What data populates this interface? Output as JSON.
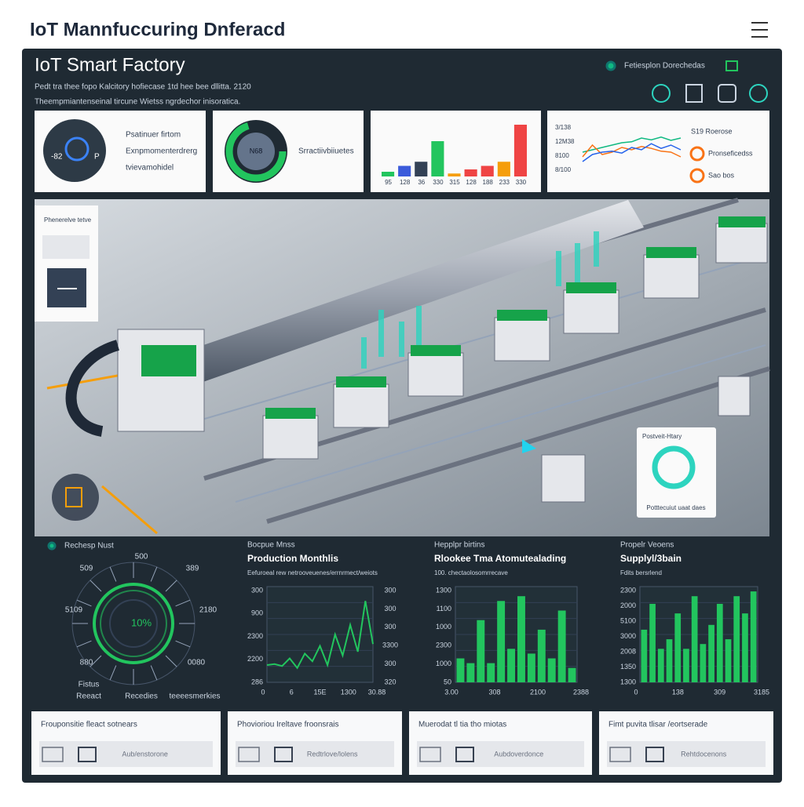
{
  "header": {
    "title": "IoT Mannfuccuring Dnferacd"
  },
  "panel": {
    "title": "IoT Smart Factory",
    "status": "Fetiesplon Dorechedas",
    "subtitle_lines": [
      "Pedt tra thee fopo Kalcitory hofiecase 1td hee bee dllitta. 2120",
      "Theempmiantenseinal tircune Wietss ngrdechor inisoratica."
    ]
  },
  "top_cards": [
    {
      "lines": [
        "Psatinuer firtom",
        "Exnpmomenterdrerg",
        "tvievamohidel"
      ],
      "gauge_labels": [
        "-82",
        "P"
      ]
    },
    {
      "center": "N68",
      "label": "Srractiivbiiuetes"
    },
    {
      "type": "bar",
      "ylim": [
        0,
        100
      ],
      "categories": [
        "95",
        "128",
        "36",
        "330",
        "315",
        "128",
        "188",
        "233",
        "330"
      ],
      "values": [
        8,
        18,
        25,
        60,
        5,
        12,
        18,
        25,
        88
      ],
      "colors": [
        "#22c55e",
        "#3b5bdb",
        "#334155",
        "#22c55e",
        "#f59e0b",
        "#ef4444",
        "#ef4444",
        "#f59e0b",
        "#ef4444"
      ]
    },
    {
      "type": "line",
      "ylim": [
        0,
        100
      ],
      "axis_labels": [
        "3/138",
        "12M38",
        "8100",
        "8/100"
      ],
      "series": [
        {
          "name": "S19 Roerose",
          "color": "#10b981",
          "values": [
            40,
            45,
            50,
            55,
            60,
            62,
            70,
            66,
            72,
            65,
            70
          ]
        },
        {
          "name": "Pronseficedss",
          "color": "#f97316",
          "values": [
            30,
            55,
            35,
            40,
            50,
            45,
            52,
            48,
            42,
            40,
            30
          ]
        },
        {
          "name": "Sao bos",
          "color": "#2563eb",
          "values": [
            20,
            35,
            40,
            42,
            38,
            50,
            45,
            58,
            48,
            55,
            45
          ]
        }
      ]
    }
  ],
  "image": {
    "left_card": "Phenerelve tetve",
    "right_card_title": "Postveit-Htary",
    "right_card_caption": "Potttecuiut uaat daes"
  },
  "bottom": [
    {
      "label": "Rechesp Nust",
      "center": "10%",
      "ring_labels": [
        "500",
        "509",
        "389",
        "5109",
        "2180",
        "880",
        "0080"
      ],
      "footer_labels": [
        "Fistus",
        "Reeact",
        "Recedies",
        "teeeesmerkies"
      ]
    },
    {
      "type": "line",
      "label": "Bocpue Mnss",
      "title": "Production Monthlis",
      "subtitle": "Eefuroeal rew netrooveuenes/errnrmect/weiots",
      "ylim": [
        0,
        100
      ],
      "left_labels": [
        "300",
        "900",
        "2300",
        "2200",
        "286"
      ],
      "right_labels": [
        "300",
        "300",
        "300",
        "3300",
        "300",
        "320"
      ],
      "x_labels": [
        "0",
        "6",
        "15E",
        "1300",
        "30.88"
      ],
      "values": [
        18,
        19,
        17,
        25,
        15,
        30,
        22,
        38,
        18,
        50,
        28,
        60,
        32,
        85,
        40
      ],
      "color": "#22c55e"
    },
    {
      "type": "bar",
      "label": "Hepplpr birtins",
      "title": "Rlookee Tma Atomutealading",
      "subtitle": "100. chectaolosomrrecave",
      "ylim": [
        0,
        100
      ],
      "left_labels": [
        "1300",
        "1100",
        "1000",
        "2300",
        "1000",
        "50"
      ],
      "x_labels": [
        "3.00",
        "308",
        "2100",
        "2388"
      ],
      "values": [
        25,
        20,
        65,
        20,
        85,
        35,
        90,
        30,
        55,
        25,
        75,
        15
      ],
      "color": "#22c55e"
    },
    {
      "type": "bar",
      "label": "Propelr Veoens",
      "title": "Supplyl/3bain",
      "subtitle": "Fdits bersrlend",
      "ylim": [
        0,
        100
      ],
      "left_labels": [
        "2300",
        "2000",
        "5100",
        "3000",
        "2008",
        "1350",
        "1300"
      ],
      "x_labels": [
        "0",
        "138",
        "309",
        "3185"
      ],
      "values": [
        55,
        82,
        35,
        45,
        72,
        35,
        90,
        40,
        60,
        82,
        45,
        90,
        72,
        95
      ],
      "color": "#22c55e"
    }
  ],
  "footer_cards": [
    {
      "title": "Frouponsitie fleact sotnears",
      "button": "Aub/enstorone"
    },
    {
      "title": "Phovioriou Ireltave froonsrais",
      "button": "Redtrlove/lolens"
    },
    {
      "title": "Muerodat tl tia tho miotas",
      "button": "Aubdoverdonce"
    },
    {
      "title": "Fimt puvita tlisar /eortserade",
      "button": "Rehtdocenons"
    }
  ]
}
